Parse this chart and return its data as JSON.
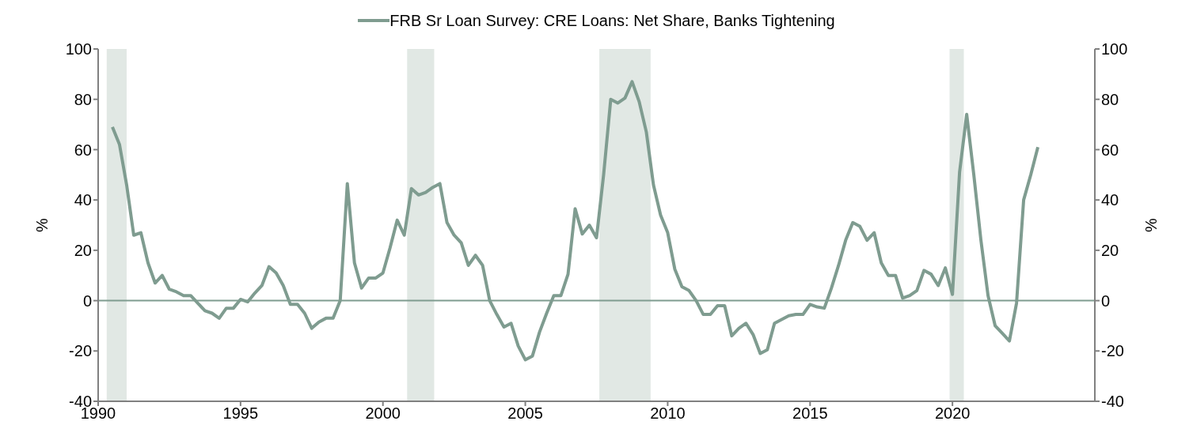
{
  "chart_data": {
    "type": "line",
    "legend": "top",
    "x": [
      1990.5,
      1990.75,
      1991,
      1991.25,
      1991.5,
      1991.75,
      1992,
      1992.25,
      1992.5,
      1992.75,
      1993,
      1993.25,
      1993.5,
      1993.75,
      1994,
      1994.25,
      1994.5,
      1994.75,
      1995,
      1995.25,
      1995.5,
      1995.75,
      1996,
      1996.25,
      1996.5,
      1996.75,
      1997,
      1997.25,
      1997.5,
      1997.75,
      1998,
      1998.25,
      1998.5,
      1998.75,
      1999,
      1999.25,
      1999.5,
      1999.75,
      2000,
      2000.25,
      2000.5,
      2000.75,
      2001,
      2001.25,
      2001.5,
      2001.75,
      2002,
      2002.25,
      2002.5,
      2002.75,
      2003,
      2003.25,
      2003.5,
      2003.75,
      2004,
      2004.25,
      2004.5,
      2004.75,
      2005,
      2005.25,
      2005.5,
      2005.75,
      2006,
      2006.25,
      2006.5,
      2006.75,
      2007,
      2007.25,
      2007.5,
      2007.75,
      2008,
      2008.25,
      2008.5,
      2008.75,
      2009,
      2009.25,
      2009.5,
      2009.75,
      2010,
      2010.25,
      2010.5,
      2010.75,
      2011,
      2011.25,
      2011.5,
      2011.75,
      2012,
      2012.25,
      2012.5,
      2012.75,
      2013,
      2013.25,
      2013.5,
      2013.75,
      2014,
      2014.25,
      2014.5,
      2014.75,
      2015,
      2015.25,
      2015.5,
      2015.75,
      2016,
      2016.25,
      2016.5,
      2016.75,
      2017,
      2017.25,
      2017.5,
      2017.75,
      2018,
      2018.25,
      2018.5,
      2018.75,
      2019,
      2019.25,
      2019.5,
      2019.75,
      2020,
      2020.25,
      2020.5,
      2020.75,
      2021,
      2021.25,
      2021.5,
      2021.75,
      2022,
      2022.25,
      2022.5,
      2022.75,
      2023
    ],
    "series": [
      {
        "name": "FRB Sr Loan Survey: CRE Loans: Net Share, Banks Tightening",
        "color": "#7f9c90",
        "values": [
          69,
          62,
          46,
          26,
          27,
          15,
          7,
          10,
          4.5,
          3.5,
          2,
          2,
          -1,
          -4,
          -5,
          -7,
          -3,
          -3,
          0.5,
          -0.5,
          3,
          6,
          13.5,
          11,
          6,
          -1.5,
          -1.5,
          -5,
          -11,
          -8.5,
          -7,
          -7,
          0,
          46.5,
          15,
          5,
          9,
          9,
          11,
          21,
          32,
          26,
          44.5,
          42,
          43,
          45,
          46.5,
          31,
          26,
          23,
          14,
          18,
          14,
          0,
          -5.5,
          -10.5,
          -9,
          -18,
          -23.5,
          -22,
          -12.5,
          -5,
          2,
          2,
          10.5,
          36.5,
          26.5,
          30,
          25,
          50,
          80,
          78.5,
          80.5,
          87,
          79,
          67,
          46,
          34,
          27,
          12.5,
          5.5,
          4,
          0,
          -5.5,
          -5.5,
          -2,
          -2,
          -14,
          -11,
          -9,
          -13.5,
          -21,
          -19.5,
          -9,
          -7.5,
          -6,
          -5.5,
          -5.5,
          -1.5,
          -2.5,
          -3,
          5,
          14,
          24,
          31,
          29.5,
          24,
          27,
          15,
          10,
          10,
          1,
          2,
          4,
          12,
          10.5,
          6,
          13,
          2.5,
          51,
          74,
          50,
          24,
          2,
          -10,
          -13,
          -16,
          -1,
          40,
          50,
          61
        ]
      }
    ],
    "xlim": [
      1990,
      2025
    ],
    "xticks": [
      1990,
      1995,
      2000,
      2005,
      2010,
      2015,
      2020
    ],
    "ylabel": "%",
    "ylim": [
      -40,
      100
    ],
    "yticks": [
      -40,
      -20,
      0,
      20,
      40,
      60,
      80,
      100
    ],
    "y2label": "%",
    "y2lim": [
      -40,
      100
    ],
    "y2ticks": [
      -40,
      -20,
      0,
      20,
      40,
      60,
      80,
      100
    ],
    "ref_lines": [
      {
        "axis": "y",
        "value": 0,
        "color": "#7f9c90"
      }
    ],
    "bands": [
      {
        "axis": "x",
        "from": 1990.3,
        "to": 1991.0,
        "color": "#e1e8e4"
      },
      {
        "axis": "x",
        "from": 2000.85,
        "to": 2001.8,
        "color": "#e1e8e4"
      },
      {
        "axis": "x",
        "from": 2007.6,
        "to": 2009.4,
        "color": "#e1e8e4"
      },
      {
        "axis": "x",
        "from": 2019.9,
        "to": 2020.4,
        "color": "#e1e8e4"
      }
    ],
    "grid": false,
    "line_style": "solid",
    "marker": "none"
  }
}
